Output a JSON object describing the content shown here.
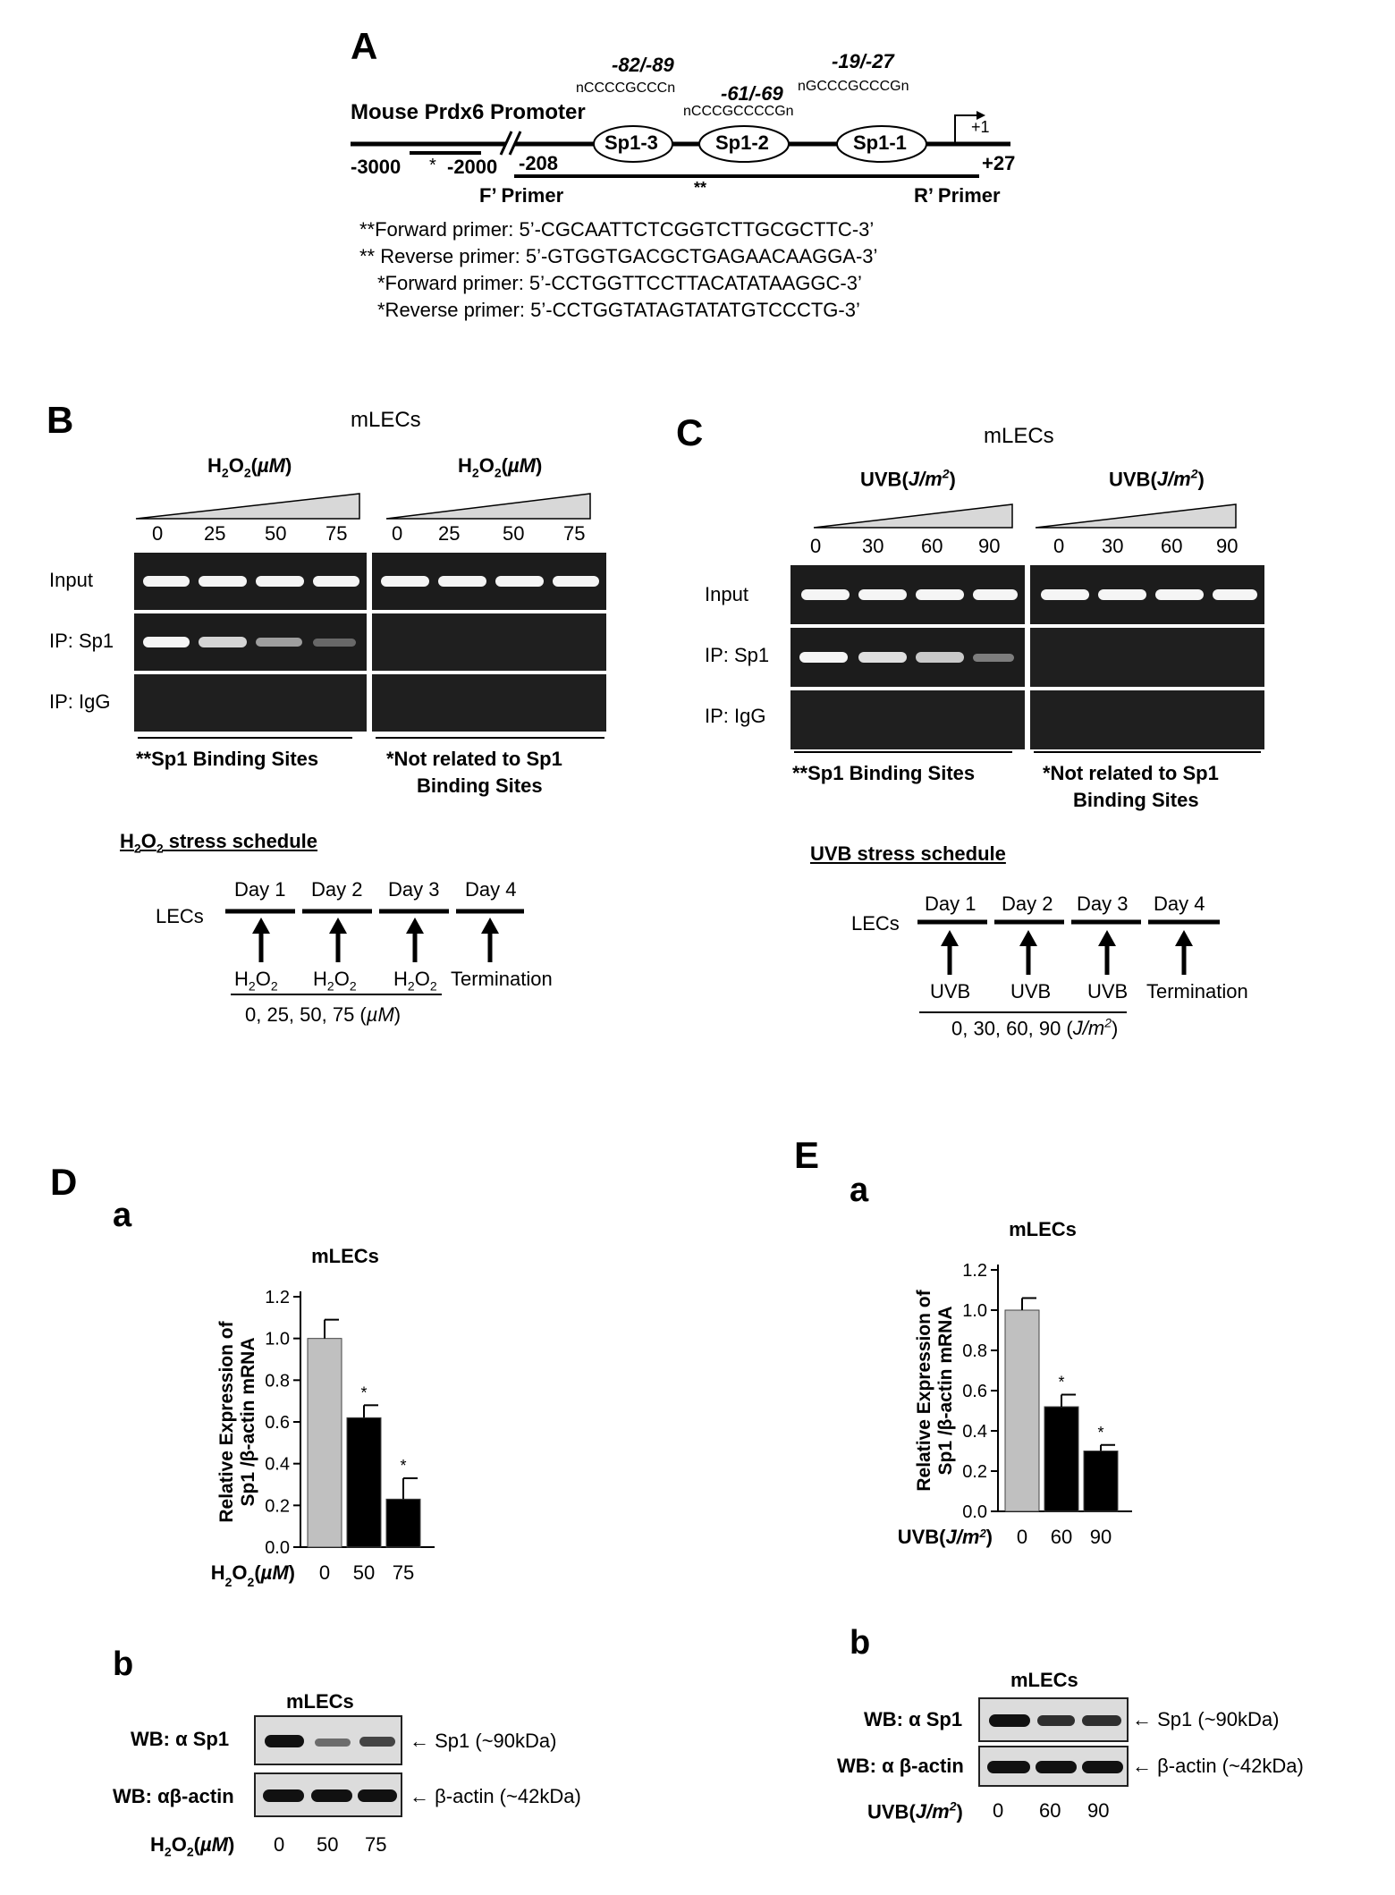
{
  "panel_a": {
    "letter": "A",
    "title": "Mouse Prdx6 Promoter",
    "site3": {
      "pos": "-82/-89",
      "seq": "nCCCCGCCCn",
      "label": "Sp1-3"
    },
    "site2": {
      "pos": "-61/-69",
      "seq": "nCCCGCCCCGn",
      "label": "Sp1-2"
    },
    "site1": {
      "pos": "-19/-27",
      "seq": "nGCCCGCCCGn",
      "label": "Sp1-1"
    },
    "coords": {
      "c3000": "-3000",
      "c2000": "-2000",
      "c208": "-208",
      "plus27": "+27",
      "plus1": "+1"
    },
    "star": "*",
    "dstar": "**",
    "f_primer": "F’ Primer",
    "r_primer": "R’ Primer",
    "primers": [
      "**Forward primer: 5’-CGCAATTCTCGGTCTTGCGCTTC-3’",
      "** Reverse primer: 5’-GTGGTGACGCTGAGAACAAGGA-3’",
      "*Forward primer: 5’-CCTGGTTCCTTACATATAAGGC-3’",
      "*Reverse primer: 5’-CCTGGTATAGTATATGTCCCTG-3’"
    ]
  },
  "panel_b": {
    "letter": "B",
    "cells": "mLECs",
    "treatment": "H2O2(µM)",
    "doses": [
      "0",
      "25",
      "50",
      "75"
    ],
    "rows": [
      "Input",
      "IP: Sp1",
      "IP: IgG"
    ],
    "left_caption": "**Sp1 Binding Sites",
    "right_caption_1": "*Not related to  Sp1",
    "right_caption_2": "Binding Sites",
    "schedule_title": "H2O2 stress schedule",
    "schedule_cells": "LECs",
    "days": [
      "Day 1",
      "Day 2",
      "Day 3",
      "Day 4"
    ],
    "agents": [
      "H2O2",
      "H2O2",
      "H2O2",
      "Termination"
    ],
    "dose_line": "0, 25, 50, 75 (µM)",
    "ip_sp1_intensity": [
      1.0,
      0.85,
      0.6,
      0.35
    ]
  },
  "panel_c": {
    "letter": "C",
    "cells": "mLECs",
    "treatment": "UVB(J/m2)",
    "doses": [
      "0",
      "30",
      "60",
      "90"
    ],
    "rows": [
      "Input",
      "IP: Sp1",
      "IP: IgG"
    ],
    "left_caption": "**Sp1 Binding Sites",
    "right_caption_1": "*Not related to  Sp1",
    "right_caption_2": "Binding Sites",
    "schedule_title": "UVB stress schedule",
    "schedule_cells": "LECs",
    "days": [
      "Day 1",
      "Day 2",
      "Day 3",
      "Day 4"
    ],
    "agents": [
      "UVB",
      "UVB",
      "UVB",
      "Termination"
    ],
    "dose_line": "0, 30, 60, 90 (J/m2)",
    "ip_sp1_intensity": [
      1.0,
      0.9,
      0.8,
      0.45
    ]
  },
  "panel_d": {
    "letter": "D",
    "sub_a": "a",
    "sub_b": "b",
    "wb_title": "mLECs",
    "wb_rows": [
      "WB: α Sp1",
      "WB: αβ-actin"
    ],
    "wb_labels": [
      "← Sp1 (~90kDa)",
      "← β-actin (~42kDa)"
    ],
    "x_title": "H2O2(µM)",
    "wb_doses": [
      "0",
      "50",
      "75"
    ]
  },
  "panel_e": {
    "letter": "E",
    "sub_a": "a",
    "sub_b": "b",
    "wb_title": "mLECs",
    "wb_rows": [
      "WB: α Sp1",
      "WB: α β-actin"
    ],
    "wb_labels": [
      "← Sp1 (~90kDa)",
      "← β-actin (~42kDa)"
    ],
    "x_title": "UVB(J/m2)",
    "wb_doses": [
      "0",
      "60",
      "90"
    ]
  },
  "chart_data": [
    {
      "type": "bar",
      "title": "mLECs",
      "ylabel": "Relative Expression of Sp1 /β-actin mRNA",
      "xlabel": "H2O2(µM)",
      "categories": [
        "0",
        "50",
        "75"
      ],
      "values": [
        1.0,
        0.62,
        0.23
      ],
      "errors": [
        0.09,
        0.06,
        0.1
      ],
      "significance": [
        "",
        "*",
        "*"
      ],
      "bar_colors": [
        "#c0c0c0",
        "#000000",
        "#000000"
      ],
      "ylim": [
        0,
        1.2
      ],
      "yticks": [
        "0.0",
        "0.2",
        "0.4",
        "0.6",
        "0.8",
        "1.0",
        "1.2"
      ]
    },
    {
      "type": "bar",
      "title": "mLECs",
      "ylabel": "Relative Expression of Sp1 /β-actin mRNA",
      "xlabel": "UVB(J/m2)",
      "categories": [
        "0",
        "60",
        "90"
      ],
      "values": [
        1.0,
        0.52,
        0.3
      ],
      "errors": [
        0.06,
        0.06,
        0.03
      ],
      "significance": [
        "",
        "*",
        "*"
      ],
      "bar_colors": [
        "#c0c0c0",
        "#000000",
        "#000000"
      ],
      "ylim": [
        0,
        1.2
      ],
      "yticks": [
        "0.0",
        "0.2",
        "0.4",
        "0.6",
        "0.8",
        "1.0",
        "1.2"
      ]
    }
  ]
}
